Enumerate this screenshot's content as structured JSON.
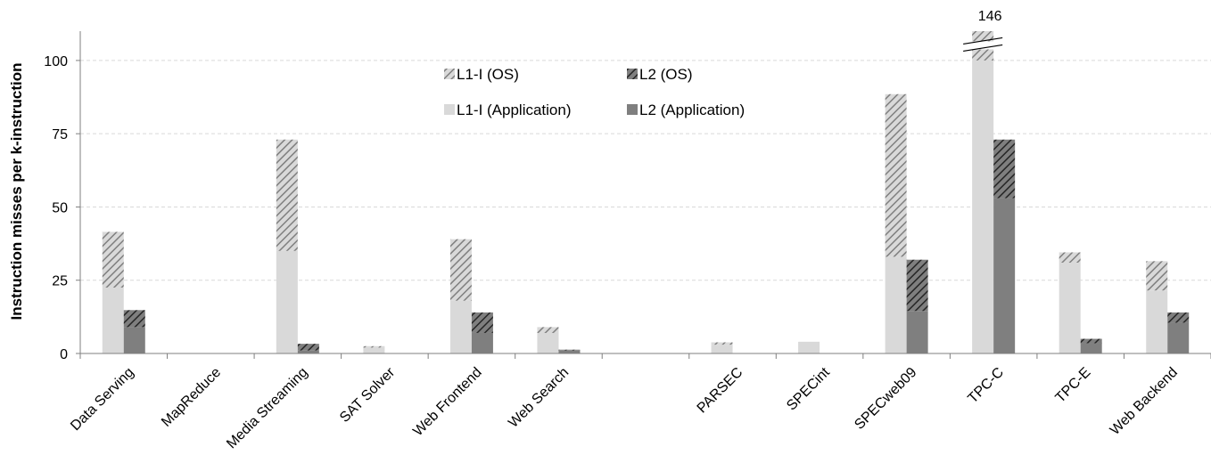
{
  "chart_data": {
    "type": "bar",
    "stacked_groups": true,
    "ylabel": "Instruction misses per k-instruction",
    "ylim": [
      0,
      110
    ],
    "yticks": [
      0,
      25,
      50,
      75,
      100
    ],
    "grid": true,
    "categories": [
      "Data Serving",
      "MapReduce",
      "Media Streaming",
      "SAT Solver",
      "Web Frontend",
      "Web Search",
      "",
      "PARSEC",
      "SPECint",
      "SPECweb09",
      "TPC-C",
      "TPC-E",
      "Web Backend"
    ],
    "series": [
      {
        "name": "L1-I (Application)",
        "stack": "L1-I",
        "pattern": "solid-light",
        "values": [
          22.5,
          0,
          35,
          2,
          18,
          7,
          0,
          3,
          4,
          33,
          100,
          31,
          21.5
        ]
      },
      {
        "name": "L1-I (OS)",
        "stack": "L1-I",
        "pattern": "hatch-light",
        "values": [
          19,
          0,
          38,
          0.5,
          21,
          2,
          0,
          0.8,
          0,
          55.5,
          46,
          3.5,
          10
        ]
      },
      {
        "name": "L2 (Application)",
        "stack": "L2",
        "pattern": "solid-dark",
        "values": [
          9,
          0,
          1,
          0,
          7,
          1,
          0,
          0,
          0,
          14.5,
          53,
          3.5,
          10.5
        ]
      },
      {
        "name": "L2 (OS)",
        "stack": "L2",
        "pattern": "hatch-dark",
        "values": [
          5.8,
          0,
          2.3,
          0,
          7,
          0.3,
          0,
          0,
          0,
          17.5,
          20,
          1.5,
          3.5
        ]
      }
    ],
    "annotations": [
      {
        "text": "146",
        "category": "TPC-C",
        "note": "axis break"
      }
    ],
    "legend": [
      {
        "label": "L1-I (OS)",
        "pattern": "hatch-light"
      },
      {
        "label": "L2 (OS)",
        "pattern": "hatch-dark"
      },
      {
        "label": "L1-I (Application)",
        "pattern": "solid-light"
      },
      {
        "label": "L2 (Application)",
        "pattern": "solid-dark"
      }
    ],
    "colors": {
      "solid-light": "#d9d9d9",
      "solid-dark": "#7f7f7f",
      "hatch-light-bg": "#d9d9d9",
      "hatch-light-line": "#7f7f7f",
      "hatch-dark-bg": "#7f7f7f",
      "hatch-dark-line": "#262626"
    }
  }
}
